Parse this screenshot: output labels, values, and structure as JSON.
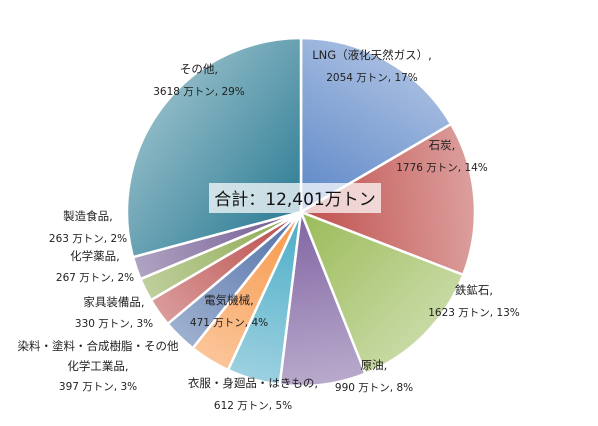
{
  "chart_data": {
    "type": "pie",
    "total_label": "合計：12,401万トン",
    "slices": [
      {
        "name": "LNG（液化天然ガス）,",
        "value": 2054,
        "value_label": "2054 万トン, 17%",
        "color": "#5b86c6"
      },
      {
        "name": "石炭,",
        "value": 1776,
        "value_label": "1776 万トン, 14%",
        "color": "#c0504d"
      },
      {
        "name": "鉄鉱石,",
        "value": 1623,
        "value_label": "1623 万トン, 13%",
        "color": "#9bbb59"
      },
      {
        "name": "原油,",
        "value": 990,
        "value_label": "990 万トン, 8%",
        "color": "#8064a2"
      },
      {
        "name": "衣服・身廻品・はきもの,",
        "value": 612,
        "value_label": "612 万トン, 5%",
        "color": "#4bacc6"
      },
      {
        "name": "電気機械,",
        "value": 471,
        "value_label": "471 万トン, 4%",
        "color": "#f79646"
      },
      {
        "name": "染料・塗料・合成樹脂・その他化学工業品,",
        "name_lines": [
          "染料・塗料・合成樹脂・その他",
          "化学工業品,"
        ],
        "value": 397,
        "value_label": "397 万トン, 3%",
        "color": "#4f6fa8"
      },
      {
        "name": "家具装備品,",
        "value": 330,
        "value_label": "330 万トン, 3%",
        "color": "#b94a48"
      },
      {
        "name": "化学薬品,",
        "value": 267,
        "value_label": "267 万トン, 2%",
        "color": "#8aa84c"
      },
      {
        "name": "製造食品,",
        "value": 263,
        "value_label": "263 万トン, 2%",
        "color": "#6f5790"
      },
      {
        "name": "その他,",
        "value": 3618,
        "value_label": "3618 万トン, 29%",
        "color": "#2e7d95"
      }
    ]
  }
}
